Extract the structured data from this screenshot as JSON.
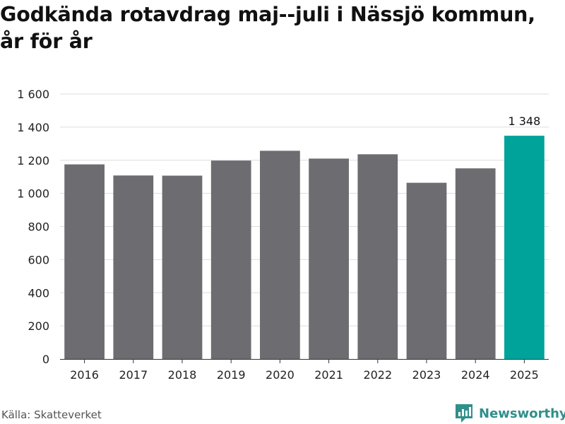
{
  "title": "Godkända rotavdrag maj--juli i Nässjö kommun, år för år",
  "source": "Källa: Skatteverket",
  "brand": {
    "name": "Newsworthy",
    "icon": "newsworthy-logo-icon"
  },
  "colors": {
    "bar": "#6d6c71",
    "highlight": "#00a39a",
    "grid": "#dddddd",
    "axis": "#333333"
  },
  "chart_data": {
    "type": "bar",
    "title": "Godkända rotavdrag maj--juli i Nässjö kommun, år för år",
    "categories": [
      "2016",
      "2017",
      "2018",
      "2019",
      "2020",
      "2021",
      "2022",
      "2023",
      "2024",
      "2025"
    ],
    "values": [
      1175,
      1108,
      1107,
      1198,
      1257,
      1210,
      1236,
      1064,
      1151,
      1348
    ],
    "highlight_index": 9,
    "data_labels": {
      "9": "1 348"
    },
    "ylim": [
      0,
      1600
    ],
    "yticks": [
      0,
      200,
      400,
      600,
      800,
      1000,
      1200,
      1400,
      1600
    ],
    "ytick_labels": [
      "0",
      "200",
      "400",
      "600",
      "800",
      "1 000",
      "1 200",
      "1 400",
      "1 600"
    ],
    "xlabel": "",
    "ylabel": "",
    "grid": true
  }
}
